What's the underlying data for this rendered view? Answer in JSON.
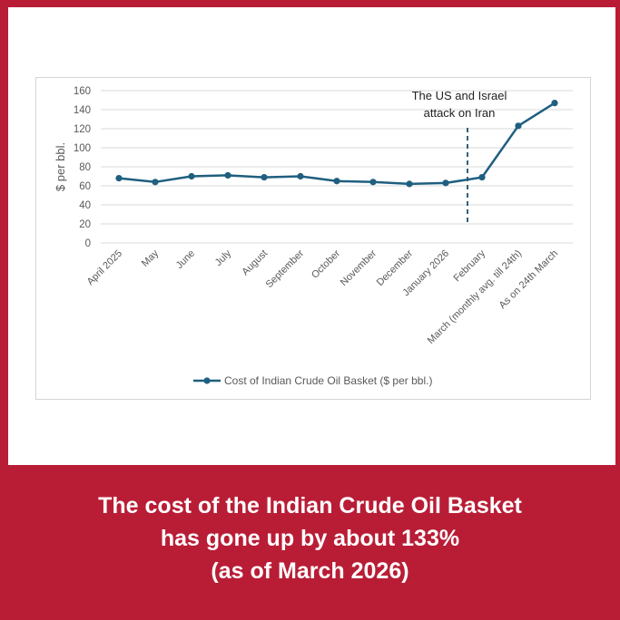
{
  "chart_data": {
    "type": "line",
    "title": "",
    "xlabel": "",
    "ylabel": "$ per bbl.",
    "ylim": [
      0,
      160
    ],
    "yticks": [
      0,
      20,
      40,
      60,
      80,
      100,
      120,
      140,
      160
    ],
    "grid": true,
    "legend_position": "bottom",
    "categories": [
      "April 2025",
      "May",
      "June",
      "July",
      "August",
      "September",
      "October",
      "November",
      "December",
      "January 2026",
      "February",
      "March (monthly avg. till 24th)",
      "As on 24th March"
    ],
    "series": [
      {
        "name": "Cost of Indian Crude Oil Basket ($ per bbl.)",
        "color": "#1f5f7f",
        "values": [
          68,
          64,
          70,
          71,
          69,
          70,
          65,
          64,
          62,
          63,
          69,
          123,
          147
        ]
      }
    ],
    "annotation": {
      "text_line1": "The US and Israel",
      "text_line2": "attack on Iran",
      "between_categories": [
        "January 2026",
        "February"
      ],
      "line_style": "dashed"
    }
  },
  "caption": {
    "line1": "The cost of the Indian Crude Oil Basket",
    "line2": "has gone up by about 133%",
    "line3": "(as of March 2026)"
  },
  "colors": {
    "background": "#b91d36",
    "card": "#ffffff",
    "line": "#1f5f7f",
    "grid": "#d9d9d9",
    "text": "#595959"
  }
}
